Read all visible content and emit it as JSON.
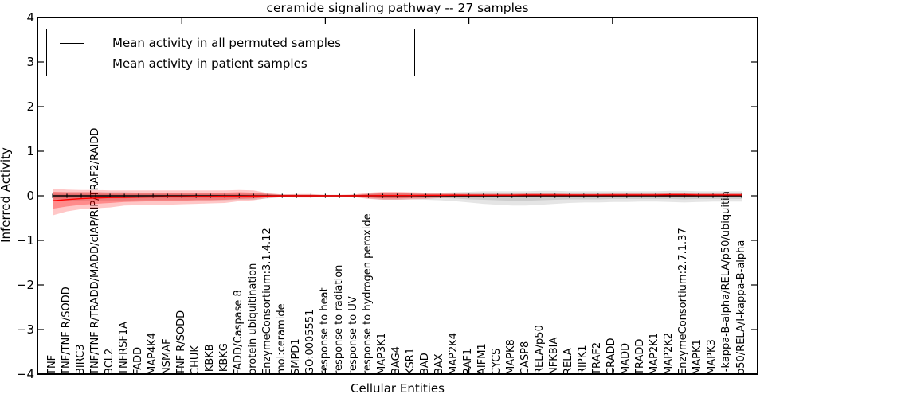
{
  "title": "ceramide signaling pathway -- 27 samples",
  "axes": {
    "ylabel": "Inferred Activity",
    "xlabel": "Cellular Entities"
  },
  "legend": {
    "items": [
      {
        "label": "Mean activity in all permuted samples",
        "color": "#000000"
      },
      {
        "label": "Mean activity in patient samples",
        "color": "#ff0000"
      }
    ]
  },
  "colors": {
    "permuted_line": "#000000",
    "patient_line": "#ff0000",
    "permuted_band": "rgba(0,0,0,0.10)",
    "patient_band_outer": "rgba(255,0,0,0.22)",
    "patient_band_inner": "rgba(255,0,0,0.30)",
    "spine": "#000000"
  },
  "chart_data": {
    "type": "line",
    "title": "ceramide signaling pathway -- 27 samples",
    "xlabel": "Cellular Entities",
    "ylabel": "Inferred Activity",
    "ylim": [
      -4,
      4
    ],
    "grid": false,
    "legend_position": "upper left",
    "ytick_values": [
      4,
      3,
      2,
      1,
      0,
      -1,
      -2,
      -3,
      -4
    ],
    "yticklabels": [
      "4",
      "3",
      "2",
      "1",
      "0",
      "−1",
      "−2",
      "−3",
      "−4"
    ],
    "xtick_indices": [
      9,
      19,
      29,
      39
    ],
    "categories": [
      "TNF",
      "TNF/TNF R/SODD",
      "BIRC3",
      "TNF/TNF R/TRADD/MADD/cIAP/RIP/TRAF2/RAIDD",
      "BCL2",
      "TNFRSF1A",
      "FADD",
      "MAP4K4",
      "NSMAF",
      "TNF R/SODD",
      "CHUK",
      "IKBKB",
      "IKBKG",
      "FADD/Caspase 8",
      "protein ubiquitination",
      "EnzymeConsortium:3.1.4.12",
      "mol:ceramide",
      "SMPD1",
      "GO:0005551",
      "response to heat",
      "response to radiation",
      "response to UV",
      "response to hydrogen peroxide",
      "MAP3K1",
      "BAG4",
      "KSR1",
      "BAD",
      "BAX",
      "MAP2K4",
      "RAF1",
      "AIFM1",
      "CYCS",
      "MAPK8",
      "CASP8",
      "RELA/p50",
      "NFKBIA",
      "RELA",
      "RIPK1",
      "TRAF2",
      "CRADD",
      "MADD",
      "TRADD",
      "MAP2K1",
      "MAP2K2",
      "EnzymeConsortium:2.7.1.37",
      "MAPK1",
      "MAPK3",
      "I-kappa-B-alpha/RELA/p50/ubiquitin",
      "p50/RELA/I-kappa-B-alpha"
    ],
    "series": [
      {
        "name": "Mean activity in all permuted samples",
        "color": "#000000",
        "tick_markers": true,
        "values": [
          0,
          0,
          0,
          0,
          0,
          0,
          0,
          0,
          0,
          0,
          0,
          0,
          0,
          0,
          0,
          0,
          0,
          0,
          0,
          0,
          0,
          0,
          0,
          0,
          0,
          0,
          0,
          0,
          0,
          0,
          0,
          0,
          0,
          0,
          0,
          0,
          0,
          0,
          0,
          0,
          0,
          0,
          0,
          0,
          0,
          0,
          0,
          0,
          0
        ]
      },
      {
        "name": "Mean activity in patient samples",
        "color": "#ff0000",
        "tick_markers": false,
        "values": [
          -0.11,
          -0.085,
          -0.065,
          -0.05,
          -0.04,
          -0.035,
          -0.03,
          -0.025,
          -0.02,
          -0.02,
          -0.015,
          -0.015,
          -0.01,
          -0.01,
          -0.005,
          -0.005,
          0,
          0,
          0,
          0,
          0,
          0,
          0,
          0.005,
          0.005,
          0.005,
          0.01,
          0.01,
          0.015,
          0.015,
          0.015,
          0.015,
          0.015,
          0.02,
          0.02,
          0.02,
          0.02,
          0.02,
          0.02,
          0.02,
          0.02,
          0.02,
          0.02,
          0.025,
          0.025,
          0.02,
          0.02,
          0.02,
          0.02
        ]
      }
    ],
    "bands": [
      {
        "name": "permuted-range",
        "color": "rgba(0,0,0,0.10)",
        "upper": [
          0.08,
          0.08,
          0.08,
          0.08,
          0.08,
          0.08,
          0.07,
          0.07,
          0.07,
          0.07,
          0.07,
          0.07,
          0.07,
          0.06,
          0.06,
          0.05,
          0.03,
          0.03,
          0.03,
          0.02,
          0.02,
          0.02,
          0.05,
          0.07,
          0.07,
          0.07,
          0.07,
          0.07,
          0.08,
          0.09,
          0.1,
          0.1,
          0.1,
          0.1,
          0.11,
          0.11,
          0.1,
          0.1,
          0.1,
          0.1,
          0.1,
          0.1,
          0.1,
          0.11,
          0.11,
          0.1,
          0.1,
          0.1,
          0.1
        ],
        "lower": [
          -0.12,
          -0.12,
          -0.12,
          -0.12,
          -0.11,
          -0.11,
          -0.1,
          -0.1,
          -0.1,
          -0.1,
          -0.1,
          -0.1,
          -0.1,
          -0.09,
          -0.09,
          -0.06,
          -0.03,
          -0.03,
          -0.03,
          -0.02,
          -0.02,
          -0.02,
          -0.06,
          -0.09,
          -0.09,
          -0.08,
          -0.09,
          -0.1,
          -0.12,
          -0.15,
          -0.18,
          -0.2,
          -0.22,
          -0.22,
          -0.2,
          -0.18,
          -0.16,
          -0.15,
          -0.15,
          -0.14,
          -0.14,
          -0.13,
          -0.13,
          -0.14,
          -0.15,
          -0.14,
          -0.13,
          -0.13,
          -0.13
        ]
      },
      {
        "name": "permuted-std",
        "color": "rgba(0,0,0,0.10)",
        "upper": [
          0.04,
          0.04,
          0.04,
          0.04,
          0.04,
          0.04,
          0.04,
          0.04,
          0.04,
          0.04,
          0.04,
          0.04,
          0.04,
          0.03,
          0.03,
          0.03,
          0.02,
          0.02,
          0.02,
          0.01,
          0.01,
          0.01,
          0.03,
          0.04,
          0.04,
          0.04,
          0.04,
          0.04,
          0.04,
          0.05,
          0.05,
          0.05,
          0.05,
          0.05,
          0.06,
          0.06,
          0.05,
          0.05,
          0.05,
          0.05,
          0.05,
          0.05,
          0.05,
          0.06,
          0.06,
          0.05,
          0.05,
          0.05,
          0.05
        ],
        "lower": [
          -0.06,
          -0.06,
          -0.06,
          -0.06,
          -0.06,
          -0.06,
          -0.05,
          -0.05,
          -0.05,
          -0.05,
          -0.05,
          -0.05,
          -0.05,
          -0.05,
          -0.05,
          -0.03,
          -0.02,
          -0.02,
          -0.02,
          -0.01,
          -0.01,
          -0.01,
          -0.03,
          -0.05,
          -0.05,
          -0.04,
          -0.05,
          -0.05,
          -0.06,
          -0.08,
          -0.09,
          -0.1,
          -0.11,
          -0.11,
          -0.1,
          -0.09,
          -0.08,
          -0.08,
          -0.08,
          -0.07,
          -0.07,
          -0.07,
          -0.07,
          -0.07,
          -0.08,
          -0.07,
          -0.07,
          -0.07,
          -0.07
        ]
      },
      {
        "name": "patient-range",
        "color": "rgba(255,0,0,0.22)",
        "upper": [
          0.16,
          0.14,
          0.13,
          0.13,
          0.12,
          0.12,
          0.12,
          0.12,
          0.12,
          0.12,
          0.12,
          0.12,
          0.12,
          0.13,
          0.12,
          0.06,
          0.03,
          0.04,
          0.04,
          0.02,
          0.02,
          0.03,
          0.07,
          0.09,
          0.09,
          0.08,
          0.07,
          0.06,
          0.06,
          0.05,
          0.05,
          0.05,
          0.05,
          0.06,
          0.06,
          0.06,
          0.05,
          0.05,
          0.05,
          0.06,
          0.06,
          0.06,
          0.06,
          0.07,
          0.07,
          0.06,
          0.06,
          0.06,
          0.06
        ],
        "lower": [
          -0.44,
          -0.35,
          -0.3,
          -0.28,
          -0.26,
          -0.22,
          -0.21,
          -0.2,
          -0.2,
          -0.19,
          -0.18,
          -0.17,
          -0.16,
          -0.12,
          -0.1,
          -0.05,
          -0.03,
          -0.04,
          -0.04,
          -0.02,
          -0.02,
          -0.03,
          -0.07,
          -0.09,
          -0.09,
          -0.08,
          -0.07,
          -0.05,
          -0.04,
          -0.04,
          -0.04,
          -0.03,
          -0.03,
          -0.03,
          -0.03,
          -0.03,
          -0.03,
          -0.03,
          -0.03,
          -0.03,
          -0.02,
          -0.02,
          -0.02,
          -0.03,
          -0.03,
          -0.02,
          -0.02,
          -0.02,
          -0.02
        ]
      },
      {
        "name": "patient-std",
        "color": "rgba(255,0,0,0.30)",
        "upper": [
          0.09,
          0.08,
          0.08,
          0.08,
          0.07,
          0.07,
          0.07,
          0.07,
          0.07,
          0.07,
          0.07,
          0.07,
          0.07,
          0.08,
          0.07,
          0.04,
          0.02,
          0.02,
          0.02,
          0.01,
          0.01,
          0.02,
          0.04,
          0.06,
          0.06,
          0.05,
          0.04,
          0.04,
          0.04,
          0.03,
          0.03,
          0.03,
          0.03,
          0.04,
          0.04,
          0.04,
          0.03,
          0.03,
          0.03,
          0.04,
          0.04,
          0.04,
          0.04,
          0.05,
          0.05,
          0.04,
          0.04,
          0.04,
          0.04
        ],
        "lower": [
          -0.29,
          -0.24,
          -0.2,
          -0.18,
          -0.16,
          -0.14,
          -0.13,
          -0.12,
          -0.12,
          -0.11,
          -0.1,
          -0.1,
          -0.09,
          -0.07,
          -0.06,
          -0.03,
          -0.02,
          -0.02,
          -0.02,
          -0.01,
          -0.01,
          -0.02,
          -0.04,
          -0.06,
          -0.06,
          -0.05,
          -0.04,
          -0.03,
          -0.02,
          -0.02,
          -0.02,
          -0.02,
          -0.02,
          -0.02,
          -0.02,
          -0.02,
          -0.02,
          -0.02,
          -0.02,
          -0.02,
          -0.01,
          -0.01,
          -0.01,
          -0.02,
          -0.02,
          -0.01,
          -0.01,
          -0.01,
          -0.01
        ]
      }
    ]
  }
}
